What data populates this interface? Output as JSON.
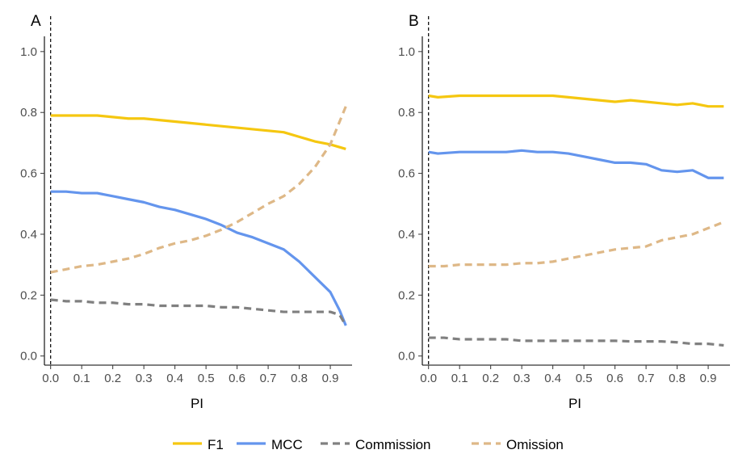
{
  "chart_data": [
    {
      "type": "line",
      "panel_label": "A",
      "xlabel": "PI",
      "ylabel": "",
      "xlim": [
        -0.02,
        0.97
      ],
      "ylim": [
        -0.03,
        1.05
      ],
      "x_ticks": [
        "0.0",
        "0.1",
        "0.2",
        "0.3",
        "0.4",
        "0.5",
        "0.6",
        "0.7",
        "0.8",
        "0.9"
      ],
      "y_ticks": [
        "0.0",
        "0.2",
        "0.4",
        "0.6",
        "0.8",
        "1.0"
      ],
      "reference_line_x": 0,
      "grid": false,
      "series": [
        {
          "name": "F1",
          "color": "#F5C710",
          "dash": "solid",
          "x": [
            0.0,
            0.05,
            0.1,
            0.15,
            0.2,
            0.25,
            0.3,
            0.35,
            0.4,
            0.45,
            0.5,
            0.55,
            0.6,
            0.65,
            0.7,
            0.75,
            0.8,
            0.85,
            0.9,
            0.95
          ],
          "y": [
            0.79,
            0.79,
            0.79,
            0.79,
            0.785,
            0.78,
            0.78,
            0.775,
            0.77,
            0.765,
            0.76,
            0.755,
            0.75,
            0.745,
            0.74,
            0.735,
            0.72,
            0.705,
            0.695,
            0.68
          ]
        },
        {
          "name": "MCC",
          "color": "#6495ED",
          "dash": "solid",
          "x": [
            0.0,
            0.05,
            0.1,
            0.15,
            0.2,
            0.25,
            0.3,
            0.35,
            0.4,
            0.45,
            0.5,
            0.55,
            0.6,
            0.65,
            0.7,
            0.75,
            0.8,
            0.85,
            0.9,
            0.93,
            0.95
          ],
          "y": [
            0.54,
            0.54,
            0.535,
            0.535,
            0.525,
            0.515,
            0.505,
            0.49,
            0.48,
            0.465,
            0.45,
            0.43,
            0.405,
            0.39,
            0.37,
            0.35,
            0.31,
            0.26,
            0.21,
            0.15,
            0.1
          ]
        },
        {
          "name": "Commission",
          "color": "#808080",
          "dash": "dashed",
          "x": [
            0.0,
            0.05,
            0.1,
            0.15,
            0.2,
            0.25,
            0.3,
            0.35,
            0.4,
            0.45,
            0.5,
            0.55,
            0.6,
            0.65,
            0.7,
            0.75,
            0.8,
            0.85,
            0.9,
            0.93,
            0.95
          ],
          "y": [
            0.185,
            0.18,
            0.18,
            0.175,
            0.175,
            0.17,
            0.17,
            0.165,
            0.165,
            0.165,
            0.165,
            0.16,
            0.16,
            0.155,
            0.15,
            0.145,
            0.145,
            0.145,
            0.145,
            0.135,
            0.1
          ]
        },
        {
          "name": "Omission",
          "color": "#DEB887",
          "dash": "dashed",
          "x": [
            0.0,
            0.05,
            0.1,
            0.15,
            0.2,
            0.25,
            0.3,
            0.35,
            0.4,
            0.45,
            0.5,
            0.55,
            0.6,
            0.65,
            0.7,
            0.75,
            0.8,
            0.85,
            0.9,
            0.95
          ],
          "y": [
            0.275,
            0.285,
            0.295,
            0.3,
            0.31,
            0.32,
            0.335,
            0.355,
            0.37,
            0.38,
            0.395,
            0.415,
            0.44,
            0.47,
            0.5,
            0.525,
            0.565,
            0.62,
            0.695,
            0.82
          ]
        }
      ]
    },
    {
      "type": "line",
      "panel_label": "B",
      "xlabel": "PI",
      "ylabel": "",
      "xlim": [
        -0.02,
        0.97
      ],
      "ylim": [
        -0.03,
        1.05
      ],
      "x_ticks": [
        "0.0",
        "0.1",
        "0.2",
        "0.3",
        "0.4",
        "0.5",
        "0.6",
        "0.7",
        "0.8",
        "0.9"
      ],
      "y_ticks": [
        "0.0",
        "0.2",
        "0.4",
        "0.6",
        "0.8",
        "1.0"
      ],
      "reference_line_x": 0,
      "grid": false,
      "series": [
        {
          "name": "F1",
          "color": "#F5C710",
          "dash": "solid",
          "x": [
            0.0,
            0.03,
            0.1,
            0.2,
            0.3,
            0.4,
            0.45,
            0.5,
            0.55,
            0.6,
            0.65,
            0.7,
            0.75,
            0.8,
            0.85,
            0.9,
            0.95
          ],
          "y": [
            0.855,
            0.85,
            0.855,
            0.855,
            0.855,
            0.855,
            0.85,
            0.845,
            0.84,
            0.835,
            0.84,
            0.835,
            0.83,
            0.825,
            0.83,
            0.82,
            0.82
          ]
        },
        {
          "name": "MCC",
          "color": "#6495ED",
          "dash": "solid",
          "x": [
            0.0,
            0.03,
            0.1,
            0.15,
            0.2,
            0.25,
            0.3,
            0.35,
            0.4,
            0.45,
            0.5,
            0.55,
            0.6,
            0.65,
            0.7,
            0.75,
            0.8,
            0.85,
            0.9,
            0.95
          ],
          "y": [
            0.67,
            0.665,
            0.67,
            0.67,
            0.67,
            0.67,
            0.675,
            0.67,
            0.67,
            0.665,
            0.655,
            0.645,
            0.635,
            0.635,
            0.63,
            0.61,
            0.605,
            0.61,
            0.585,
            0.585
          ]
        },
        {
          "name": "Commission",
          "color": "#808080",
          "dash": "dashed",
          "x": [
            0.0,
            0.05,
            0.1,
            0.15,
            0.2,
            0.25,
            0.3,
            0.35,
            0.4,
            0.45,
            0.5,
            0.55,
            0.6,
            0.65,
            0.7,
            0.75,
            0.8,
            0.85,
            0.9,
            0.95
          ],
          "y": [
            0.06,
            0.06,
            0.055,
            0.055,
            0.055,
            0.055,
            0.05,
            0.05,
            0.05,
            0.05,
            0.05,
            0.05,
            0.05,
            0.048,
            0.048,
            0.048,
            0.045,
            0.04,
            0.04,
            0.035
          ]
        },
        {
          "name": "Omission",
          "color": "#DEB887",
          "dash": "dashed",
          "x": [
            0.0,
            0.05,
            0.1,
            0.15,
            0.2,
            0.25,
            0.3,
            0.35,
            0.4,
            0.45,
            0.5,
            0.55,
            0.6,
            0.65,
            0.7,
            0.75,
            0.8,
            0.85,
            0.9,
            0.95
          ],
          "y": [
            0.295,
            0.295,
            0.3,
            0.3,
            0.3,
            0.3,
            0.305,
            0.305,
            0.31,
            0.32,
            0.33,
            0.34,
            0.35,
            0.355,
            0.36,
            0.38,
            0.39,
            0.4,
            0.42,
            0.44
          ]
        }
      ]
    }
  ],
  "legend": {
    "placement": "bottom",
    "items": [
      {
        "label": "F1",
        "color": "#F5C710",
        "dash": "solid"
      },
      {
        "label": "MCC",
        "color": "#6495ED",
        "dash": "solid"
      },
      {
        "label": "Commission",
        "color": "#808080",
        "dash": "dashed"
      },
      {
        "label": "Omission",
        "color": "#DEB887",
        "dash": "dashed"
      }
    ]
  }
}
